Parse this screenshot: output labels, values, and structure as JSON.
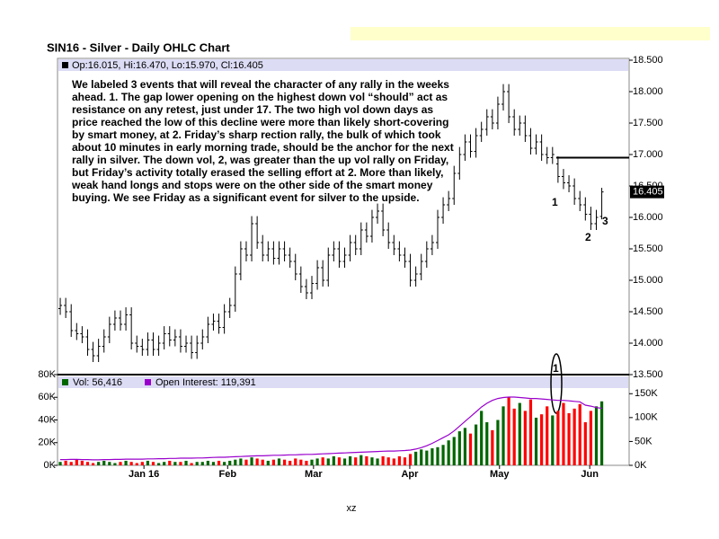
{
  "chart_data": {
    "type": "ohlc",
    "title": "SIN16 - Silver - Daily OHLC Chart",
    "ohlc_header": "Op:16.015, Hi:16.470, Lo:15.970, Cl:16.405",
    "footer": "xz",
    "commentary": [
      "We labeled 3 events that will reveal the character of any rally in the weeks",
      "ahead.  1. The gap lower opening on the highest down vol “should” act as",
      "resistance on any retest, just under 17.  The two high vol down days as",
      "price reached the low of this decline were more than likely short-covering",
      "by smart money, at 2.  Friday’s sharp rection rally, the bulk of which took",
      "about 10 minutes in early morning trade, should be the anchor for the next",
      "rally in silver.  The down vol, 2, was greater than the up vol rally on Friday,",
      "but Friday’s activity totally erased the selling effort at 2.  More than likely,",
      "weak hand longs and stops were on the other side of the smart money",
      "buying.  We see Friday as a significant event for silver to the upside."
    ],
    "annotations": [
      "1",
      "2",
      "3",
      "1"
    ],
    "last_label": "16.405",
    "resistance": 16.95,
    "color": "#000000",
    "xlim": [
      -0.5,
      104
    ],
    "xticks": [
      {
        "value": 15.3,
        "label": "Jan 16"
      },
      {
        "value": 30.6,
        "label": "Feb"
      },
      {
        "value": 46.3,
        "label": "Mar"
      },
      {
        "value": 63.9,
        "label": "Apr"
      },
      {
        "value": 80.3,
        "label": "May"
      },
      {
        "value": 96.8,
        "label": "Jun"
      }
    ],
    "ylim": [
      13.5,
      18.5
    ],
    "yticks": [
      {
        "value": 18.5,
        "label": "18.500"
      },
      {
        "value": 18,
        "label": "18.000"
      },
      {
        "value": 17.5,
        "label": "17.500"
      },
      {
        "value": 17,
        "label": "17.000"
      },
      {
        "value": 16.5,
        "label": "16.500"
      },
      {
        "value": 16,
        "label": "16.000"
      },
      {
        "value": 15.5,
        "label": "15.500"
      },
      {
        "value": 15,
        "label": "15.000"
      },
      {
        "value": 14.5,
        "label": "14.500"
      },
      {
        "value": 14,
        "label": "14.000"
      },
      {
        "value": 13.5,
        "label": "13.500"
      }
    ],
    "open": [
      14.55,
      14.6,
      14.5,
      14.2,
      14.15,
      14.1,
      13.9,
      13.8,
      13.95,
      14.1,
      14.3,
      14.4,
      14.3,
      14.45,
      14.0,
      13.95,
      13.9,
      14.05,
      13.9,
      14.0,
      14.15,
      14.05,
      14.1,
      13.95,
      14.0,
      13.85,
      14.0,
      14.1,
      14.3,
      14.35,
      14.25,
      14.5,
      14.6,
      15.1,
      15.5,
      15.4,
      15.9,
      15.6,
      15.4,
      15.5,
      15.35,
      15.5,
      15.4,
      15.3,
      15.1,
      14.9,
      14.8,
      14.95,
      15.2,
      15.0,
      15.4,
      15.5,
      15.3,
      15.4,
      15.6,
      15.5,
      15.8,
      15.7,
      16.0,
      16.1,
      15.8,
      15.6,
      15.5,
      15.4,
      15.3,
      15.0,
      15.1,
      15.3,
      15.5,
      15.6,
      16.0,
      16.2,
      16.3,
      16.7,
      17.0,
      17.2,
      17.05,
      17.3,
      17.4,
      17.6,
      17.5,
      17.8,
      18.0,
      17.6,
      17.4,
      17.5,
      17.3,
      17.1,
      17.2,
      17.0,
      16.95,
      16.85,
      16.65,
      16.55,
      16.5,
      16.3,
      16.2,
      16.05,
      15.9,
      16.015
    ],
    "high": [
      14.72,
      14.72,
      14.62,
      14.32,
      14.27,
      14.22,
      14.02,
      14.07,
      14.22,
      14.42,
      14.52,
      14.52,
      14.57,
      14.57,
      14.12,
      14.07,
      14.17,
      14.17,
      14.12,
      14.27,
      14.27,
      14.22,
      14.22,
      14.12,
      14.12,
      14.12,
      14.22,
      14.42,
      14.47,
      14.47,
      14.62,
      14.72,
      15.22,
      15.62,
      15.62,
      16.02,
      16.02,
      15.72,
      15.62,
      15.62,
      15.62,
      15.62,
      15.52,
      15.42,
      15.22,
      15.02,
      15.07,
      15.32,
      15.32,
      15.52,
      15.62,
      15.62,
      15.52,
      15.72,
      15.72,
      15.92,
      15.92,
      16.12,
      16.22,
      16.22,
      15.92,
      15.72,
      15.62,
      15.52,
      15.42,
      15.22,
      15.42,
      15.62,
      15.72,
      16.12,
      16.32,
      16.42,
      16.82,
      17.12,
      17.32,
      17.32,
      17.42,
      17.52,
      17.72,
      17.72,
      17.92,
      18.12,
      18.12,
      17.72,
      17.62,
      17.62,
      17.42,
      17.32,
      17.32,
      17.12,
      17.12,
      16.97,
      16.77,
      16.67,
      16.62,
      16.42,
      16.32,
      16.17,
      16.12,
      16.47
    ],
    "low": [
      14.45,
      14.4,
      14.1,
      14.05,
      14.0,
      13.8,
      13.7,
      13.7,
      13.85,
      14.0,
      14.2,
      14.2,
      14.2,
      13.9,
      13.85,
      13.8,
      13.8,
      13.8,
      13.8,
      13.9,
      13.95,
      13.95,
      13.85,
      13.85,
      13.75,
      13.75,
      13.9,
      14.0,
      14.2,
      14.15,
      14.15,
      14.4,
      14.5,
      15.0,
      15.3,
      15.3,
      15.5,
      15.3,
      15.3,
      15.25,
      15.25,
      15.3,
      15.2,
      15.0,
      14.8,
      14.7,
      14.7,
      14.85,
      14.9,
      14.9,
      15.3,
      15.2,
      15.2,
      15.3,
      15.4,
      15.4,
      15.6,
      15.6,
      15.9,
      15.7,
      15.5,
      15.4,
      15.3,
      15.2,
      14.9,
      14.9,
      15.0,
      15.2,
      15.4,
      15.5,
      15.9,
      16.1,
      16.2,
      16.6,
      16.9,
      16.95,
      16.95,
      17.2,
      17.3,
      17.4,
      17.4,
      17.7,
      17.5,
      17.3,
      17.3,
      17.2,
      17.0,
      17.0,
      16.9,
      16.85,
      16.85,
      16.55,
      16.45,
      16.4,
      16.2,
      16.1,
      15.95,
      15.8,
      15.8,
      15.97
    ],
    "close": [
      14.6,
      14.5,
      14.2,
      14.15,
      14.1,
      13.9,
      13.8,
      13.95,
      14.1,
      14.3,
      14.4,
      14.3,
      14.45,
      14.0,
      13.95,
      13.9,
      14.05,
      13.9,
      14.0,
      14.15,
      14.05,
      14.1,
      13.95,
      14.0,
      13.85,
      14.0,
      14.1,
      14.3,
      14.35,
      14.25,
      14.5,
      14.6,
      15.1,
      15.5,
      15.4,
      15.9,
      15.6,
      15.4,
      15.5,
      15.35,
      15.5,
      15.4,
      15.3,
      15.1,
      14.9,
      14.8,
      14.95,
      15.2,
      15.0,
      15.4,
      15.5,
      15.3,
      15.4,
      15.6,
      15.5,
      15.8,
      15.7,
      16.0,
      16.1,
      15.8,
      15.6,
      15.5,
      15.4,
      15.3,
      15.0,
      15.1,
      15.3,
      15.5,
      15.6,
      16.0,
      16.2,
      16.3,
      16.7,
      17.0,
      17.2,
      17.05,
      17.3,
      17.4,
      17.6,
      17.5,
      17.8,
      18.0,
      17.6,
      17.4,
      17.5,
      17.3,
      17.1,
      17.2,
      17.0,
      16.95,
      17.0,
      16.65,
      16.55,
      16.5,
      16.3,
      16.2,
      16.05,
      15.9,
      16.0,
      16.405
    ],
    "volume": {
      "name": "Vol: 56,416",
      "legend_color": "#006600",
      "up_color": "#006600",
      "down_color": "#ff0000",
      "ylim": [
        0,
        80000
      ],
      "yticks": [
        {
          "value": 0,
          "label": "0K"
        },
        {
          "value": 20000,
          "label": "20K"
        },
        {
          "value": 40000,
          "label": "40K"
        },
        {
          "value": 60000,
          "label": "60K"
        },
        {
          "value": 80000,
          "label": "80K"
        }
      ],
      "values": [
        3000,
        4000,
        3000,
        5000,
        4000,
        3000,
        2000,
        3000,
        4000,
        3000,
        2000,
        3000,
        4000,
        3000,
        2000,
        3000,
        4000,
        3000,
        2000,
        3000,
        4000,
        3000,
        3000,
        4000,
        2000,
        3000,
        3000,
        4000,
        3000,
        4000,
        3000,
        4000,
        5000,
        6000,
        5000,
        7000,
        6000,
        5000,
        4000,
        5000,
        6000,
        5000,
        4000,
        6000,
        5000,
        4000,
        5000,
        6000,
        7000,
        6000,
        8000,
        7000,
        6000,
        8000,
        7000,
        9000,
        8000,
        7000,
        6000,
        8000,
        7000,
        6000,
        8000,
        7000,
        10000,
        12000,
        14000,
        13000,
        15000,
        16000,
        18000,
        22000,
        25000,
        30000,
        33000,
        28000,
        36000,
        48000,
        38000,
        31000,
        40000,
        52000,
        60000,
        50000,
        55000,
        48000,
        58000,
        42000,
        45000,
        52000,
        44000,
        48000,
        55000,
        46000,
        50000,
        54000,
        38000,
        48000,
        52000,
        56416
      ]
    },
    "open_interest": {
      "name": "Open Interest: 119,391",
      "color": "#9900cc",
      "axis": "y2",
      "y2lim": [
        0,
        190000
      ],
      "y2ticks": [
        {
          "value": 0,
          "label": "0K"
        },
        {
          "value": 50000,
          "label": "50K"
        },
        {
          "value": 100000,
          "label": "100K"
        },
        {
          "value": 150000,
          "label": "150K"
        }
      ],
      "values": [
        12000,
        12000,
        12500,
        12500,
        12000,
        12000,
        11500,
        11500,
        12000,
        12000,
        12500,
        12500,
        13000,
        13000,
        13000,
        13000,
        13500,
        13500,
        14000,
        14000,
        14500,
        14500,
        15000,
        15000,
        15000,
        15500,
        15500,
        16000,
        16500,
        17000,
        17000,
        17500,
        18000,
        18500,
        19000,
        19500,
        20000,
        20000,
        20500,
        21000,
        21000,
        21500,
        22000,
        22000,
        22500,
        23000,
        23000,
        23500,
        24000,
        24500,
        25000,
        25500,
        26000,
        26500,
        27000,
        27500,
        28000,
        28500,
        29000,
        29500,
        30000,
        30000,
        30500,
        31000,
        32000,
        34000,
        37000,
        41000,
        46000,
        52000,
        58000,
        64000,
        72000,
        82000,
        92000,
        102000,
        112000,
        122000,
        130000,
        136000,
        140000,
        142000,
        143000,
        143000,
        142000,
        141000,
        140000,
        140000,
        139000,
        138000,
        137000,
        136000,
        136000,
        135000,
        134000,
        133000,
        126000,
        124000,
        121000,
        119391
      ]
    }
  }
}
